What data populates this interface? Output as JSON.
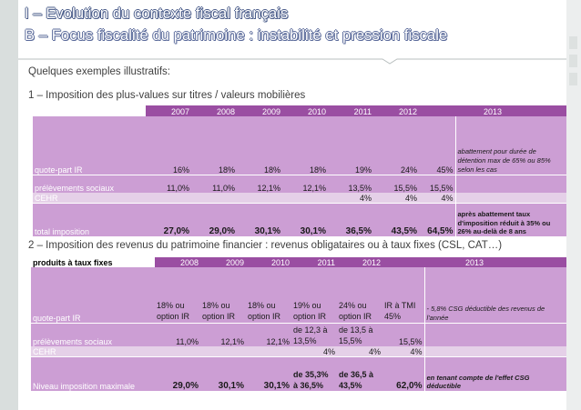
{
  "header": {
    "title": "I – Evolution du contexte fiscal français",
    "subtitle": "B – Focus fiscalité du patrimoine : instabilité et pression fiscale"
  },
  "intro": "Quelques exemples illustratifs:",
  "section1": {
    "heading": "1 – Imposition des plus-values sur titres / valeurs mobilières",
    "years": [
      "2007",
      "2008",
      "2009",
      "2010",
      "2011",
      "2012",
      "2013"
    ],
    "rows": [
      {
        "label": "quote-part IR",
        "values": [
          "16%",
          "18%",
          "18%",
          "18%",
          "19%",
          "24%",
          "45%"
        ],
        "note": "abattement pour durée de détention max de 65% ou 85% selon les cas"
      },
      {
        "label": "prélèvements sociaux",
        "values": [
          "11,0%",
          "11,0%",
          "12,1%",
          "12,1%",
          "13,5%",
          "15,5%",
          "15,5%"
        ]
      },
      {
        "label": "CEHR",
        "values": [
          "",
          "",
          "",
          "",
          "4%",
          "4%",
          "4%"
        ]
      },
      {
        "label": "total imposition",
        "values": [
          "27,0%",
          "29,0%",
          "30,1%",
          "30,1%",
          "36,5%",
          "43,5%",
          "64,5%"
        ],
        "note": "après abattement taux d'imposition réduit à 35% ou 26% au-delà de 8 ans"
      }
    ]
  },
  "section2": {
    "heading": "2 – Imposition des revenus du patrimoine financier : revenus obligataires ou à taux fixes (CSL, CAT…)",
    "corner_label": "produits à taux fixes",
    "years": [
      "2008",
      "2009",
      "2010",
      "2011",
      "2012",
      "2013"
    ],
    "rows": [
      {
        "label": "quote-part IR",
        "values": [
          "18% ou option IR",
          "18% ou option IR",
          "18% ou option IR",
          "19% ou option IR",
          "24% ou option IR",
          "IR à TMI 45%"
        ],
        "note": "- 5,8% CSG déductible des revenus de l'année"
      },
      {
        "label": "prélèvements sociaux",
        "values": [
          "11,0%",
          "12,1%",
          "12,1%",
          "de 12,3 à 13,5%",
          "de 13,5 à 15,5%",
          "15,5%"
        ]
      },
      {
        "label": "CEHR",
        "values": [
          "",
          "",
          "",
          "4%",
          "4%",
          "4%"
        ]
      },
      {
        "label": "Niveau imposition maximale",
        "values": [
          "29,0%",
          "30,1%",
          "30,1%",
          "de 35,3% à 36,5%",
          "de 36,5 à 43,5%",
          "62,0%"
        ],
        "note": "en tenant compte de l'effet CSG déductible"
      }
    ]
  }
}
